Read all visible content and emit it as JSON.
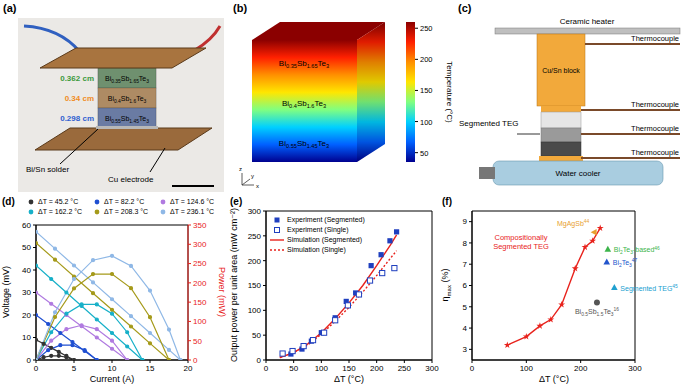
{
  "panels": {
    "a": {
      "label": "(a)",
      "legs": [
        {
          "material": "Bi0.35Sb1.65Te3",
          "height": "0.362 cm",
          "color": "#3c9a3c"
        },
        {
          "material": "Bi0.4Sb1.6Te3",
          "height": "0.34 cm",
          "color": "#f08c1e"
        },
        {
          "material": "Bi0.55Sb1.45Te3",
          "height": "0.298 cm",
          "color": "#2f5fd0"
        }
      ],
      "solder": "Bi/Sn solder",
      "electrode": "Cu electrode"
    },
    "b": {
      "label": "(b)",
      "layers": [
        "Bi0.35Sb1.65Te3",
        "Bi0.4Sb1.6Te3",
        "Bi0.55Sb1.45Te3"
      ],
      "axes": [
        "x",
        "y",
        "z"
      ],
      "colorbar": {
        "label": "Temperature (°C)",
        "range": [
          35,
          260
        ],
        "ticks": [
          50,
          100,
          150,
          200,
          250
        ]
      }
    },
    "c": {
      "label": "(c)",
      "heater": "Ceramic heater",
      "block": "Cu/Sn block",
      "thermocouples": [
        "Thermocouple",
        "Thermocouple",
        "Thermocouple",
        "Thermocouple"
      ],
      "teg": "Segmented TEG",
      "cooler": "Water cooler"
    }
  },
  "chart_data": [
    {
      "panel": "(d)",
      "type": "line",
      "x_label": "Current (A)",
      "y_label": "Voltage (mV)",
      "y2_label": "Power (mW)",
      "xlim": [
        0,
        20
      ],
      "xticks": [
        0,
        5,
        10,
        15,
        20
      ],
      "ylim": [
        0,
        60
      ],
      "yticks": [
        0,
        10,
        20,
        30,
        40,
        50,
        60
      ],
      "y2lim": [
        0,
        350
      ],
      "y2ticks": [
        0,
        50,
        100,
        150,
        200,
        250,
        300,
        350
      ],
      "legend": "top",
      "marker": "circle",
      "series": [
        {
          "name": "ΔT = 45.2 °C",
          "color": "#333333",
          "x": [
            0,
            1,
            2,
            3,
            4,
            5
          ],
          "values": [
            9,
            7.2,
            5.4,
            3.6,
            1.8,
            0
          ]
        },
        {
          "name": "ΔT = 82.2 °C",
          "color": "#1f4fd1",
          "x": [
            0,
            1.6,
            3.2,
            4.8,
            6.4,
            8
          ],
          "values": [
            20,
            16,
            12,
            8,
            4,
            0
          ]
        },
        {
          "name": "ΔT = 124.6 °C",
          "color": "#b07ae0",
          "x": [
            0,
            2,
            4,
            6,
            8,
            10,
            12
          ],
          "values": [
            30,
            25,
            20,
            15,
            10,
            5,
            0
          ]
        },
        {
          "name": "ΔT = 162.2 °C",
          "color": "#17b0c8",
          "x": [
            0,
            2,
            4,
            6,
            8,
            10,
            12,
            14
          ],
          "values": [
            42,
            36,
            30,
            24,
            18,
            12,
            6,
            0
          ]
        },
        {
          "name": "ΔT = 208.3 °C",
          "color": "#a59a1a",
          "x": [
            0,
            2.5,
            5,
            7.5,
            10,
            12.5,
            15,
            17.5
          ],
          "values": [
            52,
            44.6,
            37.1,
            29.7,
            22.3,
            14.9,
            7.4,
            0
          ]
        },
        {
          "name": "ΔT = 236.1 °C",
          "color": "#8fb8e6",
          "x": [
            0,
            2.5,
            5,
            7.5,
            10,
            12.5,
            15,
            17.5,
            19
          ],
          "values": [
            57,
            49.5,
            42,
            34.5,
            27,
            19.5,
            12,
            4.5,
            0
          ]
        },
        {
          "color": "#333333",
          "axis": "y2",
          "x": [
            0,
            1,
            2,
            3,
            4,
            5
          ],
          "values": [
            0,
            7.2,
            10.8,
            10.8,
            7.2,
            0
          ]
        },
        {
          "color": "#1f4fd1",
          "axis": "y2",
          "x": [
            0,
            1.6,
            3.2,
            4.8,
            6.4,
            8
          ],
          "values": [
            0,
            25.6,
            38.4,
            38.4,
            25.6,
            0
          ]
        },
        {
          "color": "#b07ae0",
          "axis": "y2",
          "x": [
            0,
            2,
            4,
            6,
            8,
            10,
            12
          ],
          "values": [
            0,
            50,
            80,
            90,
            80,
            50,
            0
          ]
        },
        {
          "color": "#17b0c8",
          "axis": "y2",
          "x": [
            0,
            2,
            4,
            6,
            8,
            10,
            12,
            14
          ],
          "values": [
            0,
            72,
            120,
            144,
            144,
            120,
            72,
            0
          ]
        },
        {
          "color": "#a59a1a",
          "axis": "y2",
          "x": [
            0,
            2.5,
            5,
            7.5,
            10,
            12.5,
            15,
            17.5
          ],
          "values": [
            0,
            111.5,
            185.5,
            222.8,
            223,
            186.3,
            111,
            0
          ]
        },
        {
          "color": "#8fb8e6",
          "axis": "y2",
          "x": [
            0,
            2.5,
            5,
            7.5,
            10,
            12.5,
            15,
            17.5,
            19
          ],
          "values": [
            0,
            123.8,
            210,
            258.8,
            270,
            243.8,
            180,
            78.8,
            0
          ]
        }
      ]
    },
    {
      "panel": "(e)",
      "type": "scatter",
      "x_label": "ΔT (°C)",
      "y_label": "Output power per unit area (mW cm⁻²)",
      "xlim": [
        0,
        300
      ],
      "xticks": [
        0,
        50,
        100,
        150,
        200,
        250,
        300
      ],
      "ylim": [
        0,
        300
      ],
      "yticks": [
        0,
        50,
        100,
        150,
        200,
        250,
        300
      ],
      "legend": "upper left",
      "series": [
        {
          "name": "Experiment (Segmented)",
          "type": "scatter",
          "marker": "square",
          "color": "#1f3fbf",
          "x": [
            45,
            65,
            82,
            100,
            125,
            145,
            162,
            190,
            208,
            224,
            236
          ],
          "values": [
            12,
            22,
            38,
            55,
            85,
            118,
            135,
            190,
            212,
            240,
            258
          ]
        },
        {
          "name": "Experiment (Single)",
          "type": "scatter",
          "marker": "open_square",
          "color": "#1f3fbf",
          "x": [
            30,
            48,
            68,
            85,
            105,
            125,
            148,
            168,
            188,
            210,
            232
          ],
          "values": [
            13,
            18,
            28,
            40,
            55,
            80,
            110,
            132,
            160,
            175,
            185
          ]
        },
        {
          "name": "Simulation (Segmented)",
          "type": "line",
          "line_style": "solid",
          "color": "#e8221c",
          "x": [
            25,
            50,
            75,
            100,
            125,
            150,
            175,
            200,
            225,
            236
          ],
          "values": [
            5,
            15,
            32,
            55,
            83,
            115,
            150,
            190,
            232,
            252
          ]
        },
        {
          "name": "Simulation (Single)",
          "type": "line",
          "line_style": "dotted",
          "color": "#e8221c",
          "x": [
            25,
            50,
            75,
            100,
            125,
            150,
            175,
            200,
            225,
            236
          ],
          "values": [
            5,
            15,
            30,
            52,
            78,
            106,
            137,
            170,
            205,
            220
          ]
        }
      ]
    },
    {
      "panel": "(f)",
      "type": "line",
      "x_label": "ΔT (°C)",
      "y_label": "ηmax (%)",
      "xlim": [
        0,
        300
      ],
      "xticks": [
        0,
        100,
        200,
        300
      ],
      "ylim": [
        2.5,
        9.5
      ],
      "yticks": [
        3,
        4,
        5,
        6,
        7,
        8,
        9
      ],
      "series": [
        {
          "name": "Compositionally Segmented TEG",
          "type": "line",
          "marker": "star",
          "color": "#e8221c",
          "x": [
            65,
            100,
            125,
            145,
            165,
            190,
            208,
            222,
            236
          ],
          "values": [
            3.2,
            3.6,
            4.1,
            4.4,
            5.1,
            6.8,
            7.8,
            8.1,
            8.7
          ]
        },
        {
          "name": "MgAgSb",
          "ref": "44",
          "type": "scatter",
          "marker": "triangle_left",
          "color": "#e8a030",
          "x": [
            225
          ],
          "values": [
            8.5
          ]
        },
        {
          "name": "Bi2Te3-based",
          "ref": "46",
          "type": "scatter",
          "marker": "triangle",
          "color": "#3cb44b",
          "x": [
            250
          ],
          "values": [
            7.7
          ]
        },
        {
          "name": "Bi2Te3",
          "ref": "47",
          "type": "scatter",
          "marker": "triangle",
          "color": "#2255cc",
          "x": [
            248
          ],
          "values": [
            7.1
          ]
        },
        {
          "name": "Segmented TEG",
          "ref": "45",
          "type": "scatter",
          "marker": "triangle",
          "color": "#20a0d0",
          "x": [
            262
          ],
          "values": [
            5.9
          ]
        },
        {
          "name": "Bi0.5Sb1.5Te3",
          "ref": "16",
          "type": "scatter",
          "marker": "circle",
          "color": "#555555",
          "x": [
            230
          ],
          "values": [
            5.2
          ]
        }
      ]
    }
  ]
}
